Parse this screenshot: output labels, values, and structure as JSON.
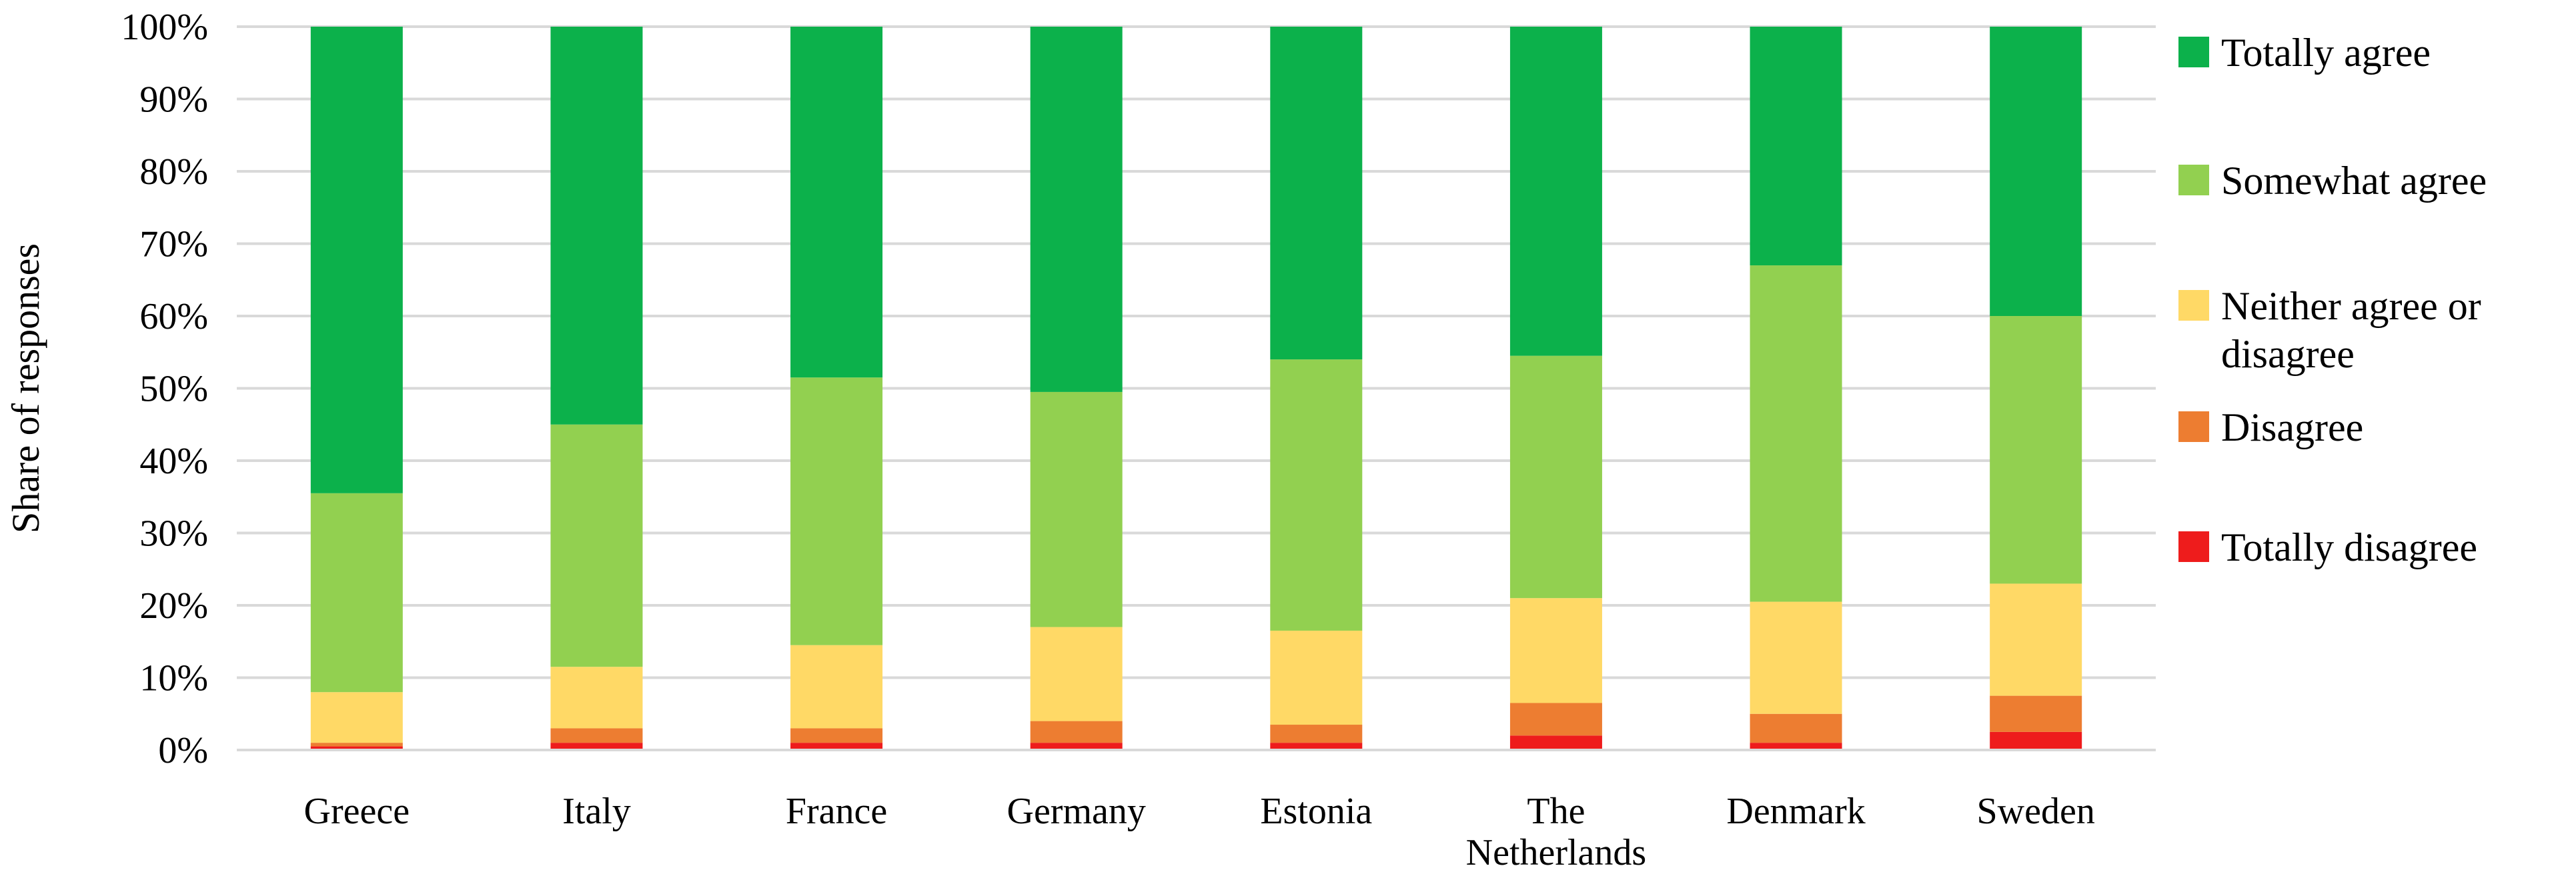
{
  "chart_data": {
    "type": "bar",
    "stacked": true,
    "categories": [
      "Greece",
      "Italy",
      "France",
      "Germany",
      "Estonia",
      "The Netherlands",
      "Denmark",
      "Sweden"
    ],
    "category_label_lines": [
      [
        "Greece"
      ],
      [
        "Italy"
      ],
      [
        "France"
      ],
      [
        "Germany"
      ],
      [
        "Estonia"
      ],
      [
        "The",
        "Netherlands"
      ],
      [
        "Denmark"
      ],
      [
        "Sweden"
      ]
    ],
    "series": [
      {
        "name": "Totally disagree",
        "color": "#ee1c1c",
        "values": [
          0.5,
          1,
          1,
          1,
          1,
          2,
          1,
          2.5
        ]
      },
      {
        "name": "Disagree",
        "color": "#ed7d31",
        "values": [
          0.5,
          2,
          2,
          3,
          2.5,
          4.5,
          4,
          5
        ]
      },
      {
        "name": "Neither agree or disagree",
        "color": "#ffd966",
        "values": [
          7,
          8.5,
          11.5,
          13,
          13,
          14.5,
          15.5,
          15.5
        ]
      },
      {
        "name": "Somewhat agree",
        "color": "#92d050",
        "values": [
          27.5,
          33.5,
          37,
          32.5,
          37.5,
          33.5,
          46.5,
          37
        ]
      },
      {
        "name": "Totally agree",
        "color": "#0cb14b",
        "values": [
          64.5,
          55,
          48.5,
          50.5,
          46,
          45.5,
          33,
          40
        ]
      }
    ],
    "legend_order": [
      "Totally agree",
      "Somewhat agree",
      "Neither agree or disagree",
      "Disagree",
      "Totally disagree"
    ],
    "legend_label_lines": {
      "Totally agree": [
        "Totally agree"
      ],
      "Somewhat agree": [
        "Somewhat agree"
      ],
      "Neither agree or disagree": [
        "Neither agree or",
        "disagree"
      ],
      "Disagree": [
        "Disagree"
      ],
      "Totally disagree": [
        "Totally disagree"
      ]
    },
    "ylabel": "Share of responses",
    "yticks": [
      "0%",
      "10%",
      "20%",
      "30%",
      "40%",
      "50%",
      "60%",
      "70%",
      "80%",
      "90%",
      "100%"
    ],
    "ylim": [
      0,
      100
    ],
    "grid": true,
    "legend_position": "right",
    "grid_color": "#d9d9d9"
  }
}
